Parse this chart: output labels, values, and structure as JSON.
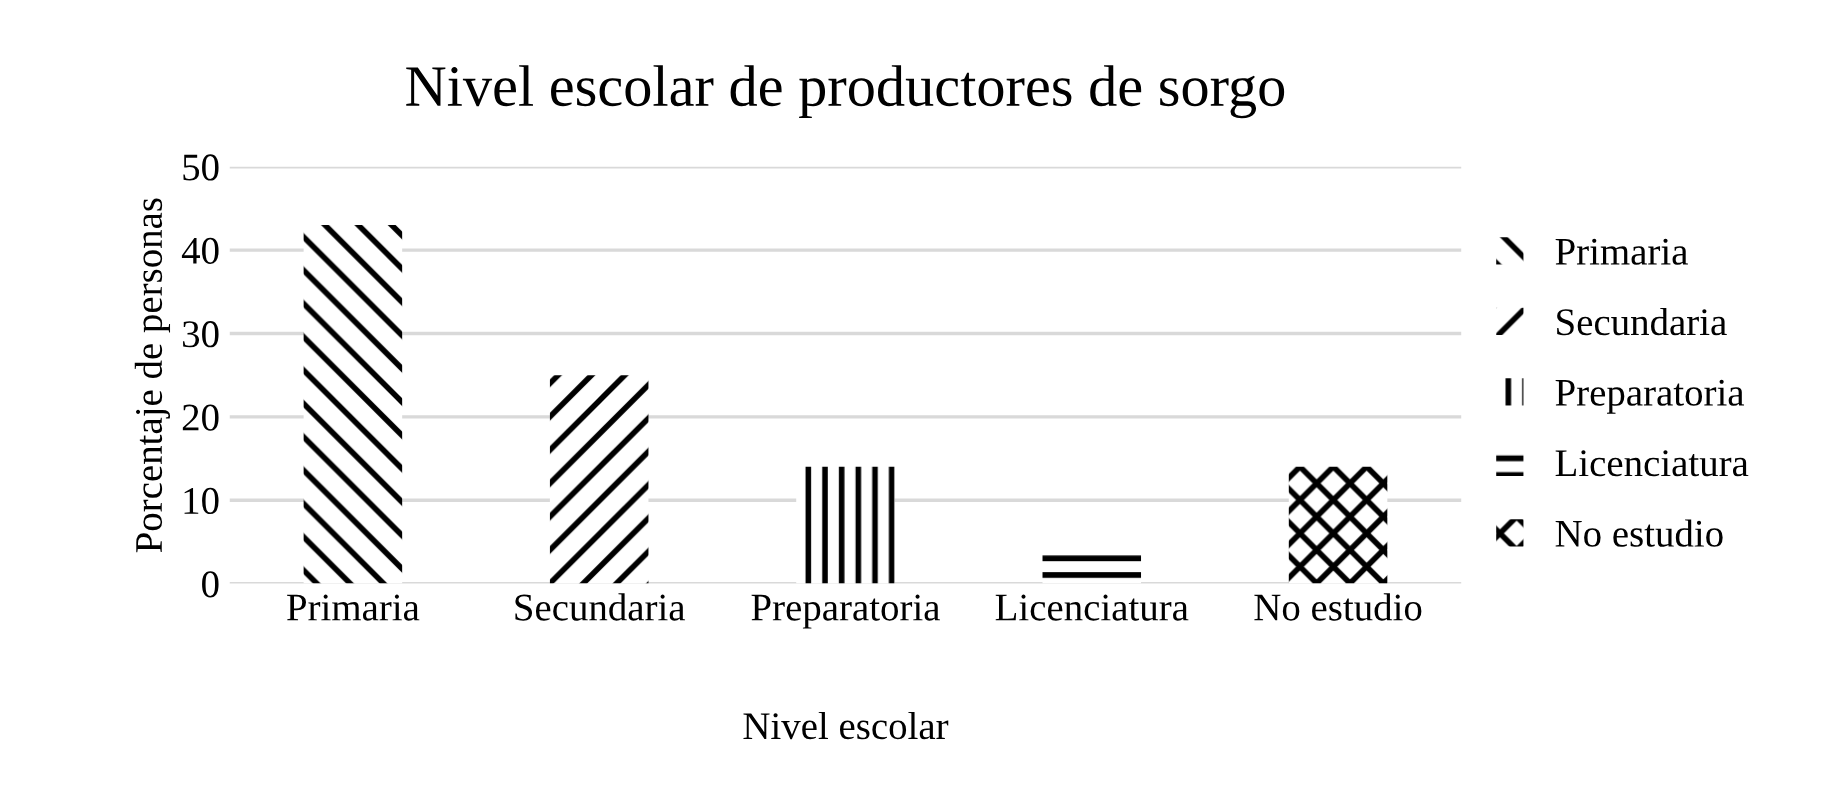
{
  "chart_data": {
    "type": "bar",
    "title": "Nivel escolar de productores de sorgo",
    "xlabel": "Nivel escolar",
    "ylabel": "Porcentaje de personas",
    "categories": [
      "Primaria",
      "Secundaria",
      "Preparatoria",
      "Licenciatura",
      "No estudio"
    ],
    "series": [
      {
        "name": "Primaria",
        "color": "#000000",
        "values": [
          43,
          null,
          null,
          null,
          null
        ]
      },
      {
        "name": "Secundaria",
        "color": "#000000",
        "values": [
          null,
          25,
          null,
          null,
          null
        ]
      },
      {
        "name": "Preparatoria",
        "color": "#000000",
        "values": [
          null,
          null,
          14,
          null,
          null
        ]
      },
      {
        "name": "Licenciatura",
        "color": "#000000",
        "values": [
          null,
          null,
          null,
          3.5,
          null
        ]
      },
      {
        "name": "No estudio",
        "color": "#000000",
        "values": [
          null,
          null,
          null,
          null,
          14
        ]
      }
    ],
    "ylim": [
      0,
      50
    ],
    "yticks": [
      0,
      10,
      20,
      30,
      40,
      50
    ],
    "grid": "y",
    "legend": "right"
  }
}
